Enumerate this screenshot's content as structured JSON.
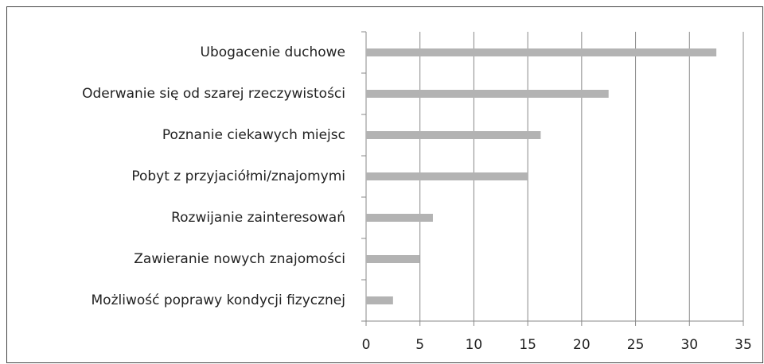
{
  "chart_data": {
    "type": "bar",
    "orientation": "horizontal",
    "categories": [
      "Ubogacenie duchowe",
      "Oderwanie się od szarej rzeczywistości",
      "Poznanie ciekawych miejsc",
      "Pobyt z przyjaciółmi/znajomymi",
      "Rozwijanie zainteresowań",
      "Zawieranie nowych znajomości",
      "Możliwość poprawy kondycji fizycznej"
    ],
    "values": [
      32.5,
      22.5,
      16.2,
      15,
      6.2,
      5,
      2.5
    ],
    "color": "#b3b3b3",
    "xlim": [
      0,
      35
    ],
    "xticks": [
      0,
      5,
      10,
      15,
      20,
      25,
      30,
      35
    ],
    "grid": true
  }
}
